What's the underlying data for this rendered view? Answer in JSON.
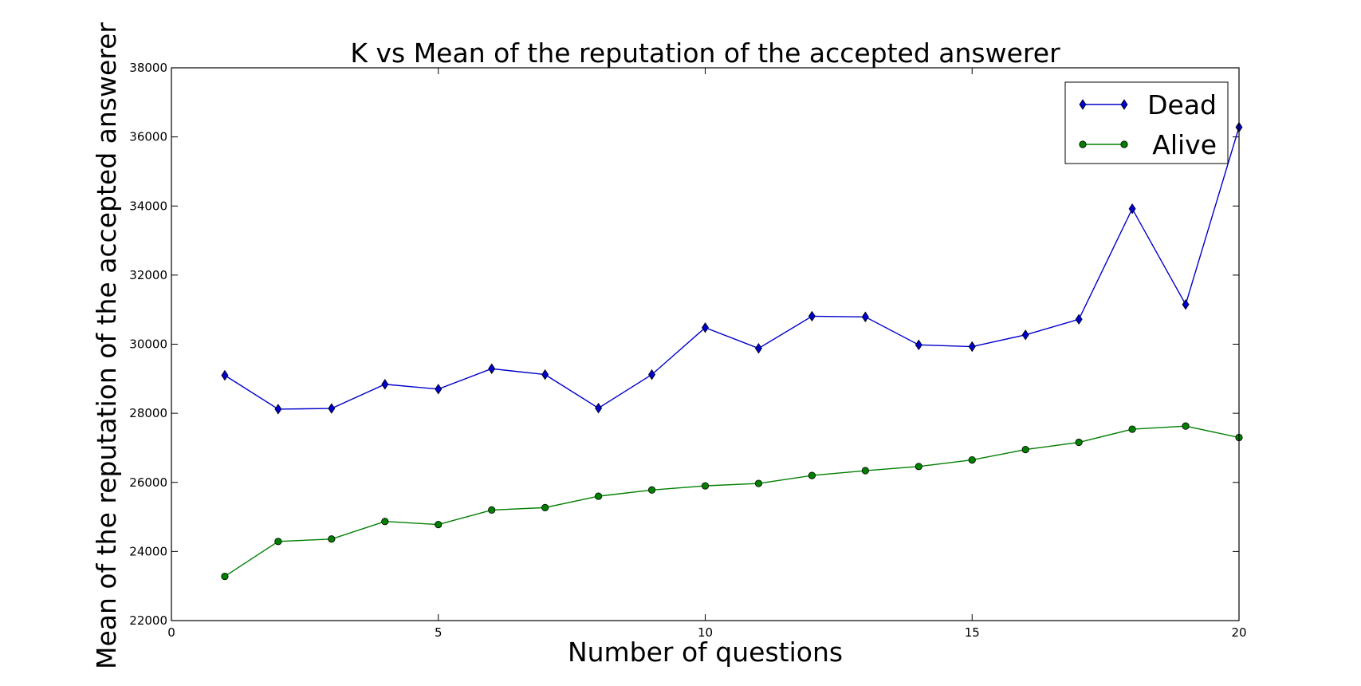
{
  "chart_data": {
    "type": "line",
    "title": "K vs Mean of the reputation of the accepted answerer",
    "xlabel": "Number of questions",
    "ylabel": "Mean of the reputation of the accepted answerer",
    "xlim": [
      0,
      20
    ],
    "ylim": [
      22000,
      38000
    ],
    "x_ticks": [
      0,
      5,
      10,
      15,
      20
    ],
    "y_ticks": [
      22000,
      24000,
      26000,
      28000,
      30000,
      32000,
      34000,
      36000,
      38000
    ],
    "grid": false,
    "legend_position": "top-right",
    "x": [
      1,
      2,
      3,
      4,
      5,
      6,
      7,
      8,
      9,
      10,
      11,
      12,
      13,
      14,
      15,
      16,
      17,
      18,
      19,
      20
    ],
    "series": [
      {
        "name": "Dead",
        "color": "#0000cc",
        "marker": "thin-diamond",
        "values": [
          29100,
          28120,
          28140,
          28840,
          28700,
          29290,
          29120,
          28150,
          29120,
          30480,
          29880,
          30810,
          30790,
          29980,
          29930,
          30270,
          30720,
          33920,
          31150,
          36280
        ]
      },
      {
        "name": "Alive",
        "color": "#007f00",
        "marker": "circle",
        "values": [
          23280,
          24290,
          24360,
          24870,
          24780,
          25200,
          25270,
          25600,
          25780,
          25900,
          25970,
          26200,
          26340,
          26460,
          26650,
          26950,
          27160,
          27540,
          27630,
          27300
        ]
      }
    ]
  }
}
